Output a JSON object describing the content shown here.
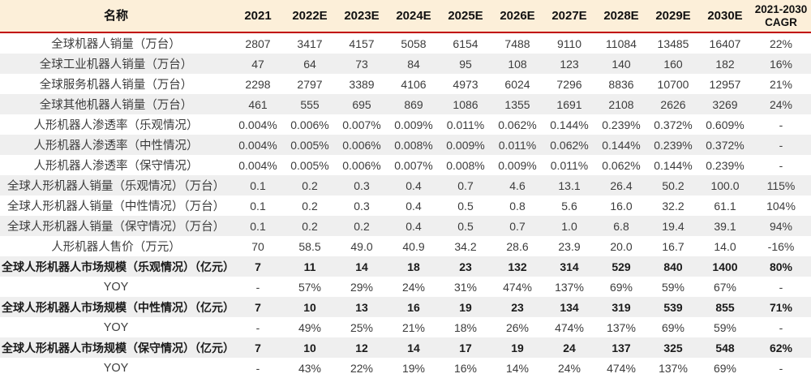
{
  "table": {
    "columns": [
      "名称",
      "2021",
      "2022E",
      "2023E",
      "2024E",
      "2025E",
      "2026E",
      "2027E",
      "2028E",
      "2029E",
      "2030E",
      "2021-2030\nCAGR"
    ],
    "rows": [
      {
        "label": "全球机器人销量（万台）",
        "bold": false,
        "values": [
          "2807",
          "3417",
          "4157",
          "5058",
          "6154",
          "7488",
          "9110",
          "11084",
          "13485",
          "16407",
          "22%"
        ]
      },
      {
        "label": "全球工业机器人销量（万台）",
        "bold": false,
        "values": [
          "47",
          "64",
          "73",
          "84",
          "95",
          "108",
          "123",
          "140",
          "160",
          "182",
          "16%"
        ]
      },
      {
        "label": "全球服务机器人销量（万台）",
        "bold": false,
        "values": [
          "2298",
          "2797",
          "3389",
          "4106",
          "4973",
          "6024",
          "7296",
          "8836",
          "10700",
          "12957",
          "21%"
        ]
      },
      {
        "label": "全球其他机器人销量（万台）",
        "bold": false,
        "values": [
          "461",
          "555",
          "695",
          "869",
          "1086",
          "1355",
          "1691",
          "2108",
          "2626",
          "3269",
          "24%"
        ]
      },
      {
        "label": "人形机器人渗透率（乐观情况）",
        "bold": false,
        "values": [
          "0.004%",
          "0.006%",
          "0.007%",
          "0.009%",
          "0.011%",
          "0.062%",
          "0.144%",
          "0.239%",
          "0.372%",
          "0.609%",
          "-"
        ]
      },
      {
        "label": "人形机器人渗透率（中性情况）",
        "bold": false,
        "values": [
          "0.004%",
          "0.005%",
          "0.006%",
          "0.008%",
          "0.009%",
          "0.011%",
          "0.062%",
          "0.144%",
          "0.239%",
          "0.372%",
          "-"
        ]
      },
      {
        "label": "人形机器人渗透率（保守情况）",
        "bold": false,
        "values": [
          "0.004%",
          "0.005%",
          "0.006%",
          "0.007%",
          "0.008%",
          "0.009%",
          "0.011%",
          "0.062%",
          "0.144%",
          "0.239%",
          "-"
        ]
      },
      {
        "label": "全球人形机器人销量（乐观情况）（万台）",
        "bold": false,
        "values": [
          "0.1",
          "0.2",
          "0.3",
          "0.4",
          "0.7",
          "4.6",
          "13.1",
          "26.4",
          "50.2",
          "100.0",
          "115%"
        ]
      },
      {
        "label": "全球人形机器人销量（中性情况）（万台）",
        "bold": false,
        "values": [
          "0.1",
          "0.2",
          "0.3",
          "0.4",
          "0.5",
          "0.8",
          "5.6",
          "16.0",
          "32.2",
          "61.1",
          "104%"
        ]
      },
      {
        "label": "全球人形机器人销量（保守情况）（万台）",
        "bold": false,
        "values": [
          "0.1",
          "0.2",
          "0.2",
          "0.4",
          "0.5",
          "0.7",
          "1.0",
          "6.8",
          "19.4",
          "39.1",
          "94%"
        ]
      },
      {
        "label": "人形机器人售价（万元）",
        "bold": false,
        "values": [
          "70",
          "58.5",
          "49.0",
          "40.9",
          "34.2",
          "28.6",
          "23.9",
          "20.0",
          "16.7",
          "14.0",
          "-16%"
        ]
      },
      {
        "label": "全球人形机器人市场规模（乐观情况）（亿元）",
        "bold": true,
        "values": [
          "7",
          "11",
          "14",
          "18",
          "23",
          "132",
          "314",
          "529",
          "840",
          "1400",
          "80%"
        ]
      },
      {
        "label": "YOY",
        "bold": false,
        "values": [
          "-",
          "57%",
          "29%",
          "24%",
          "31%",
          "474%",
          "137%",
          "69%",
          "59%",
          "67%",
          "-"
        ]
      },
      {
        "label": "全球人形机器人市场规模（中性情况）（亿元）",
        "bold": true,
        "values": [
          "7",
          "10",
          "13",
          "16",
          "19",
          "23",
          "134",
          "319",
          "539",
          "855",
          "71%"
        ]
      },
      {
        "label": "YOY",
        "bold": false,
        "values": [
          "-",
          "49%",
          "25%",
          "21%",
          "18%",
          "26%",
          "474%",
          "137%",
          "69%",
          "59%",
          "-"
        ]
      },
      {
        "label": "全球人形机器人市场规模（保守情况）（亿元）",
        "bold": true,
        "values": [
          "7",
          "10",
          "12",
          "14",
          "17",
          "19",
          "24",
          "137",
          "325",
          "548",
          "62%"
        ]
      },
      {
        "label": "YOY",
        "bold": false,
        "values": [
          "-",
          "43%",
          "22%",
          "19%",
          "16%",
          "14%",
          "24%",
          "474%",
          "137%",
          "69%",
          "-"
        ]
      }
    ]
  },
  "colors": {
    "header_bg": "#FCEFD9",
    "header_rule": "#C00000",
    "row_stripe": "#EFEFEF",
    "row_plain": "#FFFFFF",
    "text_regular": "#3c3c3c",
    "text_bold": "#1a1a1a"
  }
}
